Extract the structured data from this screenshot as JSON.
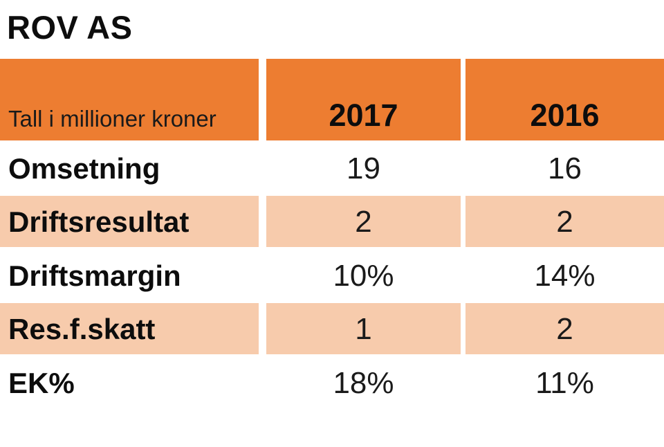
{
  "title": "ROV AS",
  "colors": {
    "header_bg": "#ED7D31",
    "row_alt_bg": "#F7CBAC",
    "text": "#141414"
  },
  "table": {
    "header": {
      "label": "Tall i millioner kroner",
      "columns": [
        "2017",
        "2016"
      ]
    },
    "rows": [
      {
        "label": "Omsetning",
        "values": [
          "19",
          "16"
        ]
      },
      {
        "label": "Driftsresultat",
        "values": [
          "2",
          "2"
        ]
      },
      {
        "label": "Driftsmargin",
        "values": [
          "10%",
          "14%"
        ]
      },
      {
        "label": "Res.f.skatt",
        "values": [
          "1",
          "2"
        ]
      },
      {
        "label": "EK%",
        "values": [
          "18%",
          "11%"
        ]
      }
    ]
  },
  "chart_data": {
    "type": "table",
    "title": "ROV AS",
    "note": "Tall i millioner kroner",
    "categories": [
      "Omsetning",
      "Driftsresultat",
      "Driftsmargin",
      "Res.f.skatt",
      "EK%"
    ],
    "series": [
      {
        "name": "2017",
        "values": [
          "19",
          "2",
          "10%",
          "1",
          "18%"
        ]
      },
      {
        "name": "2016",
        "values": [
          "16",
          "2",
          "14%",
          "2",
          "11%"
        ]
      }
    ]
  }
}
